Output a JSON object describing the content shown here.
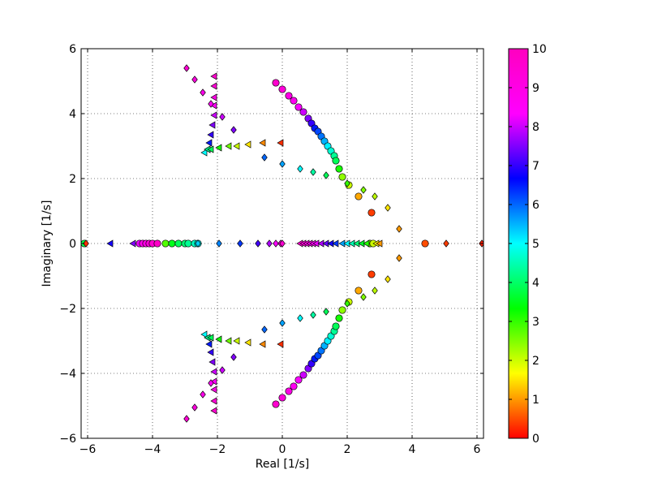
{
  "chart_data": {
    "type": "scatter",
    "title": "",
    "xlabel": "Real [1/s]",
    "ylabel": "Imaginary [1/s]",
    "xlim": [
      -6.2,
      6.2
    ],
    "ylim": [
      -6,
      6
    ],
    "xticks": [
      -6,
      -4,
      -2,
      0,
      2,
      4,
      6
    ],
    "yticks": [
      -6,
      -4,
      -2,
      0,
      2,
      4,
      6
    ],
    "xtick_labels": [
      "−6",
      "−4",
      "−2",
      "0",
      "2",
      "4",
      "6"
    ],
    "ytick_labels": [
      "−6",
      "−4",
      "−2",
      "0",
      "2",
      "4",
      "6"
    ],
    "grid": true,
    "colorbar": {
      "colormap": "gist_rainbow_r",
      "range": [
        0,
        10
      ],
      "ticks": [
        0,
        1,
        2,
        3,
        4,
        5,
        6,
        7,
        8,
        9,
        10
      ],
      "tick_labels": [
        "0",
        "1",
        "2",
        "3",
        "4",
        "5",
        "6",
        "7",
        "8",
        "9",
        "10"
      ]
    },
    "series": [
      {
        "marker": "circle",
        "points": [
          {
            "x": -0.2,
            "y": 4.95,
            "c": 9.6
          },
          {
            "x": 0.0,
            "y": 4.75,
            "c": 9.3
          },
          {
            "x": 0.2,
            "y": 4.55,
            "c": 9.0
          },
          {
            "x": 0.35,
            "y": 4.4,
            "c": 8.7
          },
          {
            "x": 0.5,
            "y": 4.2,
            "c": 8.3
          },
          {
            "x": 0.65,
            "y": 4.05,
            "c": 8.0
          },
          {
            "x": 0.8,
            "y": 3.85,
            "c": 7.5
          },
          {
            "x": 0.9,
            "y": 3.7,
            "c": 7.0
          },
          {
            "x": 1.0,
            "y": 3.55,
            "c": 6.5
          },
          {
            "x": 1.1,
            "y": 3.45,
            "c": 6.2
          },
          {
            "x": 1.2,
            "y": 3.3,
            "c": 5.9
          },
          {
            "x": 1.3,
            "y": 3.15,
            "c": 5.5
          },
          {
            "x": 1.4,
            "y": 3.0,
            "c": 5.1
          },
          {
            "x": 1.5,
            "y": 2.85,
            "c": 4.7
          },
          {
            "x": 1.6,
            "y": 2.7,
            "c": 4.3
          },
          {
            "x": 1.65,
            "y": 2.55,
            "c": 3.9
          },
          {
            "x": 1.75,
            "y": 2.3,
            "c": 3.2
          },
          {
            "x": 1.85,
            "y": 2.05,
            "c": 2.4
          },
          {
            "x": 2.05,
            "y": 1.8,
            "c": 2.0
          },
          {
            "x": 2.35,
            "y": 1.45,
            "c": 1.1
          },
          {
            "x": 2.75,
            "y": 0.95,
            "c": 0.4
          },
          {
            "x": -0.2,
            "y": -4.95,
            "c": 9.6
          },
          {
            "x": 0.0,
            "y": -4.75,
            "c": 9.3
          },
          {
            "x": 0.2,
            "y": -4.55,
            "c": 9.0
          },
          {
            "x": 0.35,
            "y": -4.4,
            "c": 8.7
          },
          {
            "x": 0.5,
            "y": -4.2,
            "c": 8.3
          },
          {
            "x": 0.65,
            "y": -4.05,
            "c": 8.0
          },
          {
            "x": 0.8,
            "y": -3.85,
            "c": 7.5
          },
          {
            "x": 0.9,
            "y": -3.7,
            "c": 7.0
          },
          {
            "x": 1.0,
            "y": -3.55,
            "c": 6.5
          },
          {
            "x": 1.1,
            "y": -3.45,
            "c": 6.2
          },
          {
            "x": 1.2,
            "y": -3.3,
            "c": 5.9
          },
          {
            "x": 1.3,
            "y": -3.15,
            "c": 5.5
          },
          {
            "x": 1.4,
            "y": -3.0,
            "c": 5.1
          },
          {
            "x": 1.5,
            "y": -2.85,
            "c": 4.7
          },
          {
            "x": 1.6,
            "y": -2.7,
            "c": 4.3
          },
          {
            "x": 1.65,
            "y": -2.55,
            "c": 3.9
          },
          {
            "x": 1.75,
            "y": -2.3,
            "c": 3.2
          },
          {
            "x": 1.85,
            "y": -2.05,
            "c": 2.4
          },
          {
            "x": 2.05,
            "y": -1.8,
            "c": 2.0
          },
          {
            "x": 2.35,
            "y": -1.45,
            "c": 1.1
          },
          {
            "x": 2.75,
            "y": -0.95,
            "c": 0.4
          },
          {
            "x": -6.1,
            "y": 0,
            "c": 3.8
          },
          {
            "x": -4.4,
            "y": 0,
            "c": 8.2
          },
          {
            "x": -4.3,
            "y": 0,
            "c": 8.8
          },
          {
            "x": -4.2,
            "y": 0,
            "c": 9.0
          },
          {
            "x": -4.1,
            "y": 0,
            "c": 9.3
          },
          {
            "x": -4.0,
            "y": 0,
            "c": 9.5
          },
          {
            "x": -3.85,
            "y": 0,
            "c": 9.8
          },
          {
            "x": -3.6,
            "y": 0,
            "c": 2.8
          },
          {
            "x": -3.4,
            "y": 0,
            "c": 3.5
          },
          {
            "x": -3.2,
            "y": 0,
            "c": 3.9
          },
          {
            "x": -3.0,
            "y": 0,
            "c": 4.1
          },
          {
            "x": -2.9,
            "y": 0,
            "c": 4.3
          },
          {
            "x": -2.7,
            "y": 0,
            "c": 4.6
          },
          {
            "x": -2.6,
            "y": 0,
            "c": 4.9
          },
          {
            "x": 2.7,
            "y": 0,
            "c": 2.4
          },
          {
            "x": 2.8,
            "y": 0,
            "c": 2.0
          },
          {
            "x": 4.4,
            "y": 0,
            "c": 0.5
          }
        ]
      },
      {
        "marker": "triangle-left",
        "points": [
          {
            "x": -2.1,
            "y": 5.15,
            "c": 9.6
          },
          {
            "x": -2.1,
            "y": 4.85,
            "c": 9.4
          },
          {
            "x": -2.1,
            "y": 4.5,
            "c": 9.0
          },
          {
            "x": -2.1,
            "y": 4.25,
            "c": 8.5
          },
          {
            "x": -2.1,
            "y": 3.95,
            "c": 8.0
          },
          {
            "x": -2.15,
            "y": 3.65,
            "c": 7.5
          },
          {
            "x": -2.2,
            "y": 3.35,
            "c": 7.0
          },
          {
            "x": -2.25,
            "y": 3.1,
            "c": 6.5
          },
          {
            "x": -2.3,
            "y": 2.9,
            "c": 5.8
          },
          {
            "x": -2.4,
            "y": 2.8,
            "c": 5.0
          },
          {
            "x": -2.3,
            "y": 2.9,
            "c": 4.3
          },
          {
            "x": -2.2,
            "y": 2.9,
            "c": 3.9
          },
          {
            "x": -1.95,
            "y": 2.95,
            "c": 3.2
          },
          {
            "x": -1.65,
            "y": 3.0,
            "c": 2.6
          },
          {
            "x": -1.4,
            "y": 3.0,
            "c": 2.0
          },
          {
            "x": -1.05,
            "y": 3.05,
            "c": 1.5
          },
          {
            "x": -0.6,
            "y": 3.1,
            "c": 0.9
          },
          {
            "x": -0.05,
            "y": 3.1,
            "c": 0.3
          },
          {
            "x": -2.1,
            "y": -5.15,
            "c": 9.6
          },
          {
            "x": -2.1,
            "y": -4.85,
            "c": 9.4
          },
          {
            "x": -2.1,
            "y": -4.5,
            "c": 9.0
          },
          {
            "x": -2.1,
            "y": -4.25,
            "c": 8.5
          },
          {
            "x": -2.1,
            "y": -3.95,
            "c": 8.0
          },
          {
            "x": -2.15,
            "y": -3.65,
            "c": 7.5
          },
          {
            "x": -2.2,
            "y": -3.35,
            "c": 7.0
          },
          {
            "x": -2.25,
            "y": -3.1,
            "c": 6.5
          },
          {
            "x": -2.3,
            "y": -2.9,
            "c": 5.8
          },
          {
            "x": -2.4,
            "y": -2.8,
            "c": 5.0
          },
          {
            "x": -2.3,
            "y": -2.9,
            "c": 4.3
          },
          {
            "x": -2.2,
            "y": -2.9,
            "c": 3.9
          },
          {
            "x": -1.95,
            "y": -2.95,
            "c": 3.2
          },
          {
            "x": -1.65,
            "y": -3.0,
            "c": 2.6
          },
          {
            "x": -1.4,
            "y": -3.0,
            "c": 2.0
          },
          {
            "x": -1.05,
            "y": -3.05,
            "c": 1.5
          },
          {
            "x": -0.6,
            "y": -3.1,
            "c": 0.9
          },
          {
            "x": -0.05,
            "y": -3.1,
            "c": 0.3
          },
          {
            "x": -5.3,
            "y": 0,
            "c": 6.8
          },
          {
            "x": -4.6,
            "y": 0,
            "c": 7.5
          },
          {
            "x": 0.55,
            "y": 0,
            "c": 9.5
          },
          {
            "x": 0.65,
            "y": 0,
            "c": 9.3
          },
          {
            "x": 0.75,
            "y": 0,
            "c": 9.0
          },
          {
            "x": 0.85,
            "y": 0,
            "c": 8.8
          },
          {
            "x": 0.95,
            "y": 0,
            "c": 8.5
          },
          {
            "x": 1.05,
            "y": 0,
            "c": 8.2
          },
          {
            "x": 1.2,
            "y": 0,
            "c": 7.8
          },
          {
            "x": 1.35,
            "y": 0,
            "c": 7.3
          },
          {
            "x": 1.5,
            "y": 0,
            "c": 6.8
          },
          {
            "x": 1.65,
            "y": 0,
            "c": 6.3
          },
          {
            "x": 1.85,
            "y": 0,
            "c": 5.6
          },
          {
            "x": 2.0,
            "y": 0,
            "c": 5.0
          },
          {
            "x": 2.15,
            "y": 0,
            "c": 4.5
          },
          {
            "x": 2.3,
            "y": 0,
            "c": 4.1
          },
          {
            "x": 2.45,
            "y": 0,
            "c": 3.6
          },
          {
            "x": 2.6,
            "y": 0,
            "c": 3.1
          },
          {
            "x": 2.9,
            "y": 0,
            "c": 1.6
          },
          {
            "x": 3.0,
            "y": 0,
            "c": 1.0
          }
        ]
      },
      {
        "marker": "diamond",
        "points": [
          {
            "x": -2.95,
            "y": 5.4,
            "c": 9.5
          },
          {
            "x": -2.7,
            "y": 5.05,
            "c": 9.2
          },
          {
            "x": -2.45,
            "y": 4.65,
            "c": 8.9
          },
          {
            "x": -2.2,
            "y": 4.3,
            "c": 8.6
          },
          {
            "x": -1.85,
            "y": 3.9,
            "c": 8.0
          },
          {
            "x": -1.5,
            "y": 3.5,
            "c": 7.5
          },
          {
            "x": -0.55,
            "y": 2.65,
            "c": 6.0
          },
          {
            "x": 0.0,
            "y": 2.45,
            "c": 5.6
          },
          {
            "x": 0.55,
            "y": 2.3,
            "c": 5.0
          },
          {
            "x": 0.95,
            "y": 2.2,
            "c": 4.4
          },
          {
            "x": 1.35,
            "y": 2.1,
            "c": 3.9
          },
          {
            "x": 2.0,
            "y": 1.85,
            "c": 3.0
          },
          {
            "x": 2.5,
            "y": 1.65,
            "c": 2.5
          },
          {
            "x": 2.85,
            "y": 1.45,
            "c": 2.1
          },
          {
            "x": 3.25,
            "y": 1.1,
            "c": 1.5
          },
          {
            "x": 3.6,
            "y": 0.45,
            "c": 1.0
          },
          {
            "x": -2.95,
            "y": -5.4,
            "c": 9.5
          },
          {
            "x": -2.7,
            "y": -5.05,
            "c": 9.2
          },
          {
            "x": -2.45,
            "y": -4.65,
            "c": 8.9
          },
          {
            "x": -2.2,
            "y": -4.3,
            "c": 8.6
          },
          {
            "x": -1.85,
            "y": -3.9,
            "c": 8.0
          },
          {
            "x": -1.5,
            "y": -3.5,
            "c": 7.5
          },
          {
            "x": -0.55,
            "y": -2.65,
            "c": 6.0
          },
          {
            "x": 0.0,
            "y": -2.45,
            "c": 5.6
          },
          {
            "x": 0.55,
            "y": -2.3,
            "c": 5.0
          },
          {
            "x": 0.95,
            "y": -2.2,
            "c": 4.4
          },
          {
            "x": 1.35,
            "y": -2.1,
            "c": 3.9
          },
          {
            "x": 2.0,
            "y": -1.85,
            "c": 3.0
          },
          {
            "x": 2.5,
            "y": -1.65,
            "c": 2.5
          },
          {
            "x": 2.85,
            "y": -1.45,
            "c": 2.1
          },
          {
            "x": 3.25,
            "y": -1.1,
            "c": 1.5
          },
          {
            "x": 3.6,
            "y": -0.45,
            "c": 1.0
          },
          {
            "x": -6.05,
            "y": 0,
            "c": 0.3
          },
          {
            "x": -2.6,
            "y": 0,
            "c": 5.3
          },
          {
            "x": -1.95,
            "y": 0,
            "c": 5.8
          },
          {
            "x": -1.3,
            "y": 0,
            "c": 6.3
          },
          {
            "x": -0.75,
            "y": 0,
            "c": 7.1
          },
          {
            "x": -0.4,
            "y": 0,
            "c": 7.8
          },
          {
            "x": -0.2,
            "y": 0,
            "c": 8.4
          },
          {
            "x": -0.05,
            "y": 0,
            "c": 9.0
          },
          {
            "x": 0.0,
            "y": 0,
            "c": 9.5
          },
          {
            "x": 5.05,
            "y": 0,
            "c": 0.4
          },
          {
            "x": 6.15,
            "y": 0,
            "c": 0.2
          }
        ]
      }
    ]
  }
}
